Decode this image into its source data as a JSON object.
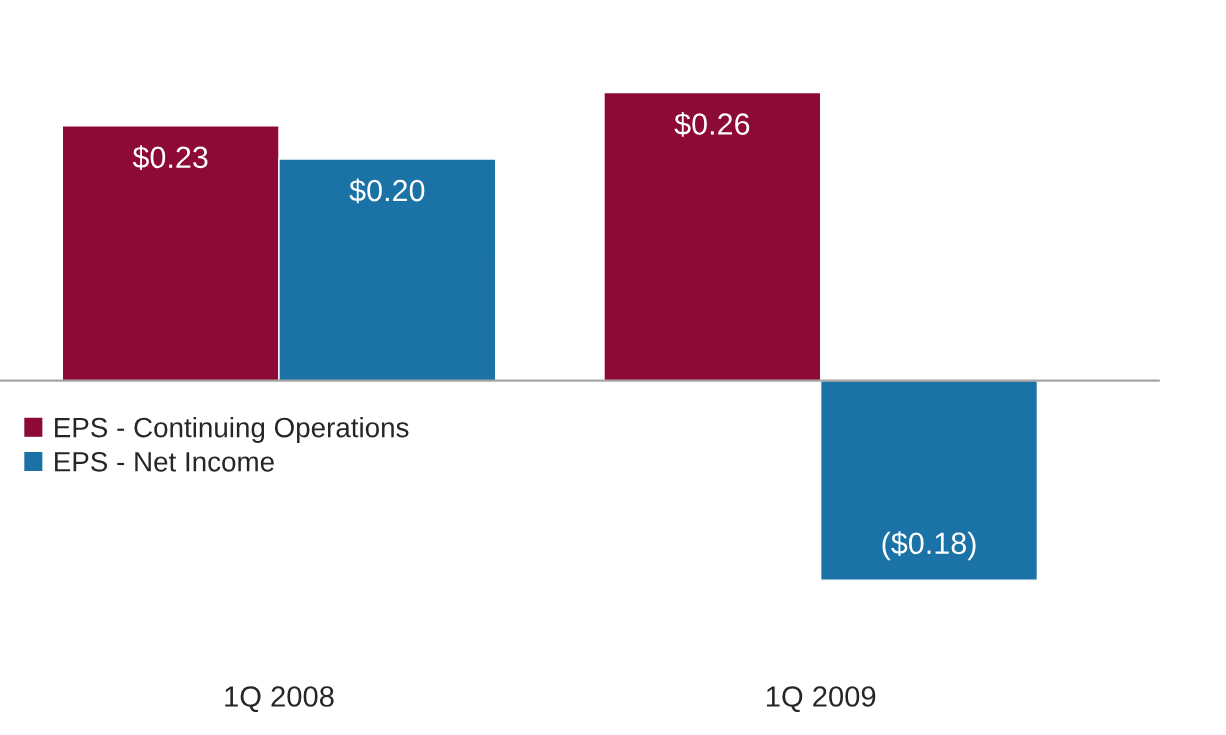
{
  "chart_data": {
    "type": "bar",
    "categories": [
      "1Q 2008",
      "1Q 2009"
    ],
    "series": [
      {
        "name": "EPS - Continuing Operations",
        "color": "#8c0a35",
        "values": [
          0.23,
          0.26
        ],
        "value_labels": [
          "$0.23",
          "$0.26"
        ]
      },
      {
        "name": "EPS - Net Income",
        "color": "#1a72a6",
        "values": [
          0.2,
          -0.18
        ],
        "value_labels": [
          "$0.20",
          "($0.18)"
        ]
      }
    ],
    "legend": "left",
    "grid": false
  }
}
